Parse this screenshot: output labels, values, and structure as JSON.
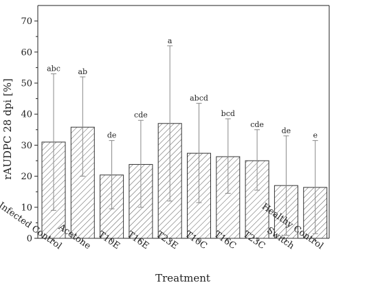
{
  "chart_data": {
    "type": "bar",
    "title": "",
    "xlabel": "Treatment",
    "ylabel": "rAUDPC 28 dpi [%]",
    "ylim": [
      0,
      75
    ],
    "yticks": [
      0,
      10,
      20,
      30,
      40,
      50,
      60,
      70
    ],
    "grid": false,
    "bar_fill": "diagonal-hatch",
    "colors": {
      "bar_stroke": "#333333",
      "hatch": "#555555",
      "error_bar": "#888888",
      "axis": "#222222"
    },
    "categories": [
      "Infected Control",
      "Acetone",
      "T10E",
      "T16E",
      "T23E",
      "T10C",
      "T16C",
      "T23C",
      "Switch",
      "Healthy Control"
    ],
    "values": [
      31,
      35.8,
      20.4,
      23.8,
      37,
      27.4,
      26.3,
      25,
      17,
      16.4
    ],
    "error_low": [
      9,
      20,
      9.5,
      10,
      12,
      11.5,
      14.5,
      15.5,
      1,
      1.5
    ],
    "error_high": [
      53,
      52,
      31.5,
      38,
      62,
      43.5,
      38.5,
      35,
      33,
      31.5
    ],
    "significance_labels": [
      "abc",
      "ab",
      "de",
      "cde",
      "a",
      "abcd",
      "bcd",
      "cde",
      "de",
      "e"
    ]
  }
}
